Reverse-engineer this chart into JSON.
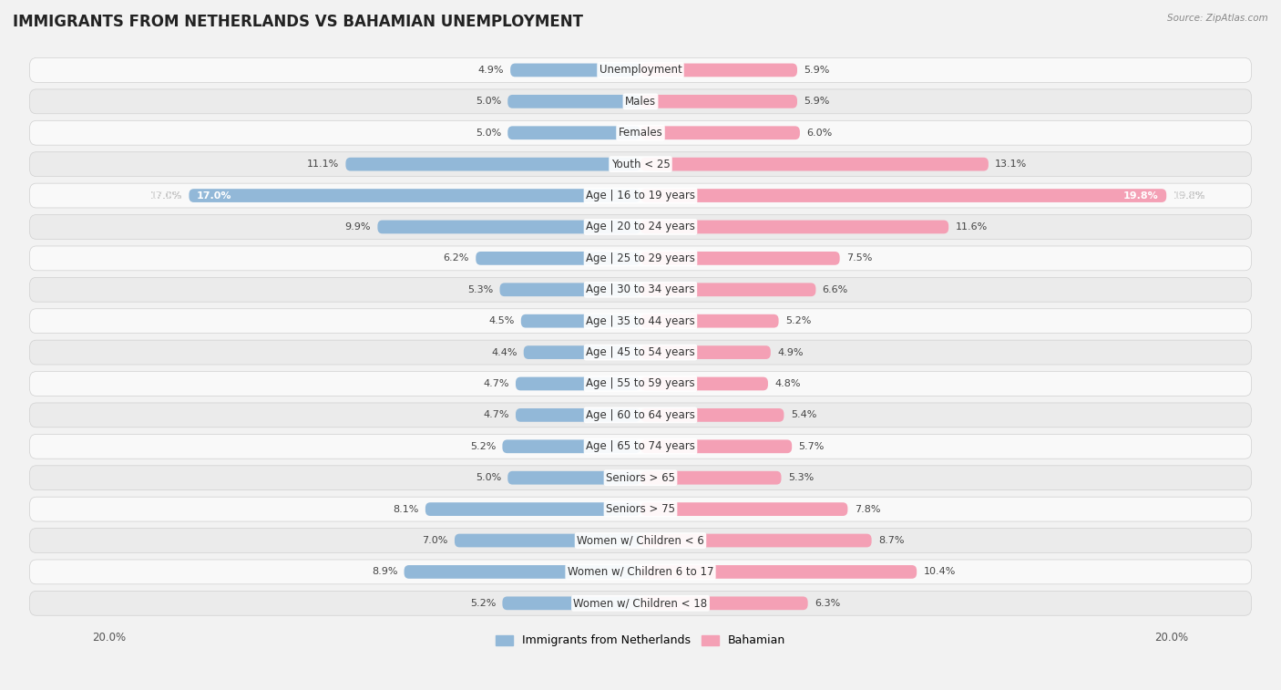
{
  "title": "IMMIGRANTS FROM NETHERLANDS VS BAHAMIAN UNEMPLOYMENT",
  "source": "Source: ZipAtlas.com",
  "categories": [
    "Unemployment",
    "Males",
    "Females",
    "Youth < 25",
    "Age | 16 to 19 years",
    "Age | 20 to 24 years",
    "Age | 25 to 29 years",
    "Age | 30 to 34 years",
    "Age | 35 to 44 years",
    "Age | 45 to 54 years",
    "Age | 55 to 59 years",
    "Age | 60 to 64 years",
    "Age | 65 to 74 years",
    "Seniors > 65",
    "Seniors > 75",
    "Women w/ Children < 6",
    "Women w/ Children 6 to 17",
    "Women w/ Children < 18"
  ],
  "left_values": [
    4.9,
    5.0,
    5.0,
    11.1,
    17.0,
    9.9,
    6.2,
    5.3,
    4.5,
    4.4,
    4.7,
    4.7,
    5.2,
    5.0,
    8.1,
    7.0,
    8.9,
    5.2
  ],
  "right_values": [
    5.9,
    5.9,
    6.0,
    13.1,
    19.8,
    11.6,
    7.5,
    6.6,
    5.2,
    4.9,
    4.8,
    5.4,
    5.7,
    5.3,
    7.8,
    8.7,
    10.4,
    6.3
  ],
  "left_color": "#92b8d8",
  "right_color": "#f4a0b5",
  "left_label": "Immigrants from Netherlands",
  "right_label": "Bahamian",
  "axis_max": 20.0,
  "background_color": "#f2f2f2",
  "row_color_light": "#f9f9f9",
  "row_color_dark": "#ebebeb",
  "title_fontsize": 12,
  "label_fontsize": 8.5,
  "value_fontsize": 8,
  "legend_fontsize": 9
}
